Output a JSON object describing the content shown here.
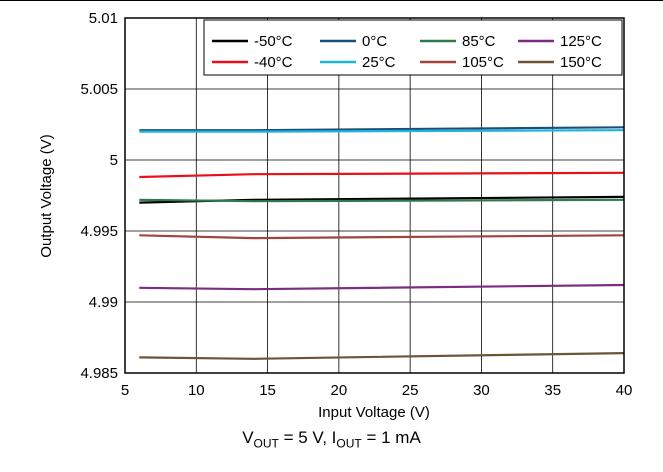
{
  "chart_data": {
    "type": "line",
    "xlabel": "Input Voltage (V)",
    "ylabel": "Output Voltage (V)",
    "xlim": [
      5,
      40
    ],
    "ylim": [
      4.985,
      5.01
    ],
    "xticks": [
      5,
      10,
      15,
      20,
      25,
      30,
      35,
      40
    ],
    "yticks": [
      4.985,
      4.99,
      4.995,
      5,
      5.005,
      5.01
    ],
    "xtick_labels": [
      "5",
      "10",
      "15",
      "20",
      "25",
      "30",
      "35",
      "40"
    ],
    "ytick_labels": [
      "4.985",
      "4.99",
      "4.995",
      "5",
      "5.005",
      "5.01"
    ],
    "grid": true,
    "legend_position": "top-right",
    "x": [
      6,
      14,
      40
    ],
    "series": [
      {
        "name": "-50°C",
        "color": "#000000",
        "values": [
          4.997,
          4.9972,
          4.9974
        ]
      },
      {
        "name": "-40°C",
        "color": "#e8101a",
        "values": [
          4.9988,
          4.999,
          4.9991
        ]
      },
      {
        "name": "0°C",
        "color": "#1b4f7a",
        "values": [
          5.0021,
          5.0021,
          5.0023
        ]
      },
      {
        "name": "25°C",
        "color": "#20b4dc",
        "values": [
          5.002,
          5.002,
          5.0021
        ]
      },
      {
        "name": "85°C",
        "color": "#2e7a4b",
        "values": [
          4.9972,
          4.9971,
          4.9972
        ]
      },
      {
        "name": "105°C",
        "color": "#a1443c",
        "values": [
          4.9947,
          4.9945,
          4.9947
        ]
      },
      {
        "name": "125°C",
        "color": "#7b2d82",
        "values": [
          4.991,
          4.9909,
          4.9912
        ]
      },
      {
        "name": "150°C",
        "color": "#6b5535",
        "values": [
          4.9861,
          4.986,
          4.9864
        ]
      }
    ]
  },
  "caption": {
    "v_main": "V",
    "v_sub": "OUT",
    "v_text": " = 5 V, ",
    "i_main": "I",
    "i_sub": "OUT",
    "i_text": " = 1 mA"
  }
}
